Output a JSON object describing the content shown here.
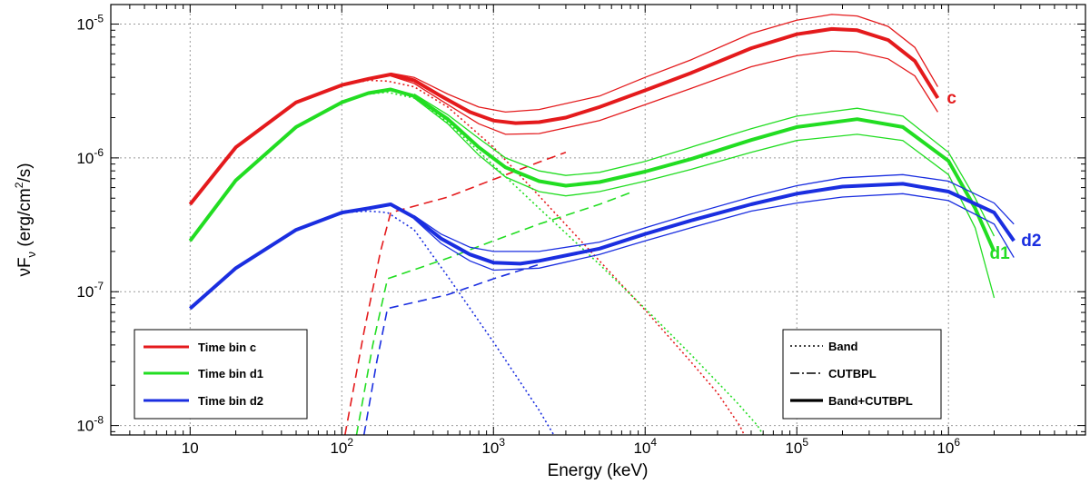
{
  "chart_data": {
    "type": "line",
    "xlabel": "Energy (keV)",
    "ylabel": "νF_ν (erg/cm²/s)",
    "ylabel_parts": {
      "base": "νF",
      "sub": "ν",
      "pre_sup": " (erg/cm",
      "sup": "2",
      "post_sup": "/s)"
    },
    "x_scale": "log",
    "y_scale": "log",
    "xlim": [
      3,
      8000000
    ],
    "ylim": [
      8.5e-09,
      1.4e-05
    ],
    "x_ticks": [
      {
        "value": 10,
        "base": "10",
        "exp": ""
      },
      {
        "value": 100,
        "base": "10",
        "exp": "2"
      },
      {
        "value": 1000,
        "base": "10",
        "exp": "3"
      },
      {
        "value": 10000,
        "base": "10",
        "exp": "4"
      },
      {
        "value": 100000,
        "base": "10",
        "exp": "5"
      },
      {
        "value": 1000000,
        "base": "10",
        "exp": "6"
      }
    ],
    "y_ticks": [
      {
        "value": 1e-05,
        "base": "10",
        "exp": "-5"
      },
      {
        "value": 1e-06,
        "base": "10",
        "exp": "-6"
      },
      {
        "value": 1e-07,
        "base": "10",
        "exp": "-7"
      },
      {
        "value": 1e-08,
        "base": "10",
        "exp": "-8"
      }
    ],
    "grid": true,
    "colors": {
      "c": "#e41a1c",
      "d1": "#22dd22",
      "d2": "#1a2ee0"
    },
    "series": [
      {
        "name": "c",
        "label": "c",
        "color": "#e41a1c",
        "band_total": [
          [
            10,
            4.5e-07
          ],
          [
            20,
            1.2e-06
          ],
          [
            50,
            2.6e-06
          ],
          [
            100,
            3.5e-06
          ],
          [
            150,
            3.9e-06
          ],
          [
            210,
            4.2e-06
          ],
          [
            300,
            3.8e-06
          ],
          [
            450,
            2.9e-06
          ],
          [
            700,
            2.2e-06
          ],
          [
            1000,
            1.9e-06
          ],
          [
            1400,
            1.82e-06
          ],
          [
            2000,
            1.85e-06
          ],
          [
            3000,
            2e-06
          ],
          [
            5000,
            2.4e-06
          ],
          [
            10000,
            3.2e-06
          ],
          [
            20000,
            4.3e-06
          ],
          [
            50000,
            6.6e-06
          ],
          [
            100000,
            8.4e-06
          ],
          [
            170000,
            9.2e-06
          ],
          [
            250000,
            9e-06
          ],
          [
            400000,
            7.6e-06
          ],
          [
            600000,
            5.3e-06
          ],
          [
            850000,
            2.8e-06
          ]
        ],
        "envelope_upper": [
          [
            210,
            4.3e-06
          ],
          [
            300,
            4e-06
          ],
          [
            500,
            3e-06
          ],
          [
            800,
            2.4e-06
          ],
          [
            1200,
            2.2e-06
          ],
          [
            2000,
            2.3e-06
          ],
          [
            5000,
            2.9e-06
          ],
          [
            10000,
            4e-06
          ],
          [
            20000,
            5.4e-06
          ],
          [
            50000,
            8.5e-06
          ],
          [
            100000,
            1.07e-05
          ],
          [
            170000,
            1.18e-05
          ],
          [
            250000,
            1.15e-05
          ],
          [
            400000,
            9.6e-06
          ],
          [
            600000,
            6.7e-06
          ],
          [
            850000,
            3.4e-06
          ]
        ],
        "envelope_lower": [
          [
            210,
            4.1e-06
          ],
          [
            300,
            3.6e-06
          ],
          [
            500,
            2.5e-06
          ],
          [
            800,
            1.8e-06
          ],
          [
            1200,
            1.5e-06
          ],
          [
            2000,
            1.52e-06
          ],
          [
            5000,
            1.9e-06
          ],
          [
            10000,
            2.5e-06
          ],
          [
            20000,
            3.3e-06
          ],
          [
            50000,
            4.8e-06
          ],
          [
            100000,
            5.8e-06
          ],
          [
            170000,
            6.3e-06
          ],
          [
            250000,
            6.2e-06
          ],
          [
            400000,
            5.5e-06
          ],
          [
            600000,
            4.1e-06
          ],
          [
            850000,
            2.2e-06
          ]
        ],
        "band": [
          [
            10,
            4.5e-07
          ],
          [
            20,
            1.2e-06
          ],
          [
            50,
            2.6e-06
          ],
          [
            100,
            3.5e-06
          ],
          [
            150,
            3.8e-06
          ],
          [
            200,
            3.75e-06
          ],
          [
            300,
            3.4e-06
          ],
          [
            500,
            2.4e-06
          ],
          [
            1000,
            1.2e-06
          ],
          [
            2000,
            5.2e-07
          ],
          [
            5000,
            1.7e-07
          ],
          [
            10000,
            7.3e-08
          ],
          [
            20000,
            3e-08
          ],
          [
            30000,
            1.75e-08
          ],
          [
            42000,
            1e-08
          ],
          [
            45000,
            8.5e-09
          ]
        ],
        "cutbpl": [
          [
            105,
            8.5e-09
          ],
          [
            140,
            5e-08
          ],
          [
            180,
            2e-07
          ],
          [
            210,
            3.9e-07
          ],
          [
            500,
            5.1e-07
          ],
          [
            1000,
            6.9e-07
          ],
          [
            2000,
            9.3e-07
          ],
          [
            3000,
            1.1e-06
          ]
        ]
      },
      {
        "name": "d1",
        "label": "d1",
        "color": "#22dd22",
        "band_total": [
          [
            10,
            2.4e-07
          ],
          [
            20,
            6.8e-07
          ],
          [
            50,
            1.7e-06
          ],
          [
            100,
            2.6e-06
          ],
          [
            150,
            3.05e-06
          ],
          [
            210,
            3.25e-06
          ],
          [
            300,
            2.9e-06
          ],
          [
            500,
            1.95e-06
          ],
          [
            800,
            1.2e-06
          ],
          [
            1200,
            8.5e-07
          ],
          [
            2000,
            6.7e-07
          ],
          [
            3000,
            6.2e-07
          ],
          [
            5000,
            6.6e-07
          ],
          [
            10000,
            7.9e-07
          ],
          [
            20000,
            9.8e-07
          ],
          [
            50000,
            1.36e-06
          ],
          [
            100000,
            1.7e-06
          ],
          [
            250000,
            1.95e-06
          ],
          [
            500000,
            1.7e-06
          ],
          [
            1000000,
            9.5e-07
          ],
          [
            1500000,
            4.2e-07
          ],
          [
            2000000,
            2e-07
          ]
        ],
        "envelope_upper": [
          [
            300,
            3e-06
          ],
          [
            500,
            2.1e-06
          ],
          [
            800,
            1.4e-06
          ],
          [
            1200,
            1e-06
          ],
          [
            2000,
            8e-07
          ],
          [
            3000,
            7.4e-07
          ],
          [
            5000,
            7.8e-07
          ],
          [
            10000,
            9.4e-07
          ],
          [
            20000,
            1.2e-06
          ],
          [
            50000,
            1.65e-06
          ],
          [
            100000,
            2.05e-06
          ],
          [
            250000,
            2.35e-06
          ],
          [
            500000,
            2.05e-06
          ],
          [
            1000000,
            1.1e-06
          ],
          [
            1500000,
            5e-07
          ],
          [
            2000000,
            2.6e-07
          ]
        ],
        "envelope_lower": [
          [
            300,
            2.8e-06
          ],
          [
            500,
            1.8e-06
          ],
          [
            800,
            1.05e-06
          ],
          [
            1200,
            7.2e-07
          ],
          [
            2000,
            5.6e-07
          ],
          [
            3000,
            5.2e-07
          ],
          [
            5000,
            5.6e-07
          ],
          [
            10000,
            6.7e-07
          ],
          [
            20000,
            8.2e-07
          ],
          [
            50000,
            1.1e-06
          ],
          [
            100000,
            1.35e-06
          ],
          [
            250000,
            1.5e-06
          ],
          [
            500000,
            1.35e-06
          ],
          [
            1000000,
            7.5e-07
          ],
          [
            1500000,
            3e-07
          ],
          [
            2000000,
            9e-08
          ]
        ],
        "band": [
          [
            10,
            2.4e-07
          ],
          [
            20,
            6.8e-07
          ],
          [
            50,
            1.7e-06
          ],
          [
            100,
            2.6e-06
          ],
          [
            150,
            3e-06
          ],
          [
            200,
            3.1e-06
          ],
          [
            300,
            2.8e-06
          ],
          [
            500,
            1.85e-06
          ],
          [
            1000,
            8.8e-07
          ],
          [
            2000,
            4.2e-07
          ],
          [
            5000,
            1.6e-07
          ],
          [
            10000,
            7.5e-08
          ],
          [
            20000,
            3.4e-08
          ],
          [
            40000,
            1.5e-08
          ],
          [
            55000,
            1e-08
          ],
          [
            60000,
            8.5e-09
          ]
        ],
        "cutbpl": [
          [
            125,
            8.5e-09
          ],
          [
            160,
            4e-08
          ],
          [
            200,
            1.25e-07
          ],
          [
            500,
            1.78e-07
          ],
          [
            1000,
            2.4e-07
          ],
          [
            2000,
            3.2e-07
          ],
          [
            5000,
            4.5e-07
          ],
          [
            8000,
            5.5e-07
          ]
        ]
      },
      {
        "name": "d2",
        "label": "d2",
        "color": "#1a2ee0",
        "band_total": [
          [
            10,
            7.5e-08
          ],
          [
            20,
            1.5e-07
          ],
          [
            50,
            2.9e-07
          ],
          [
            100,
            3.9e-07
          ],
          [
            150,
            4.2e-07
          ],
          [
            210,
            4.5e-07
          ],
          [
            300,
            3.6e-07
          ],
          [
            450,
            2.5e-07
          ],
          [
            700,
            1.9e-07
          ],
          [
            1000,
            1.65e-07
          ],
          [
            1500,
            1.62e-07
          ],
          [
            2000,
            1.7e-07
          ],
          [
            5000,
            2.1e-07
          ],
          [
            10000,
            2.7e-07
          ],
          [
            20000,
            3.4e-07
          ],
          [
            50000,
            4.5e-07
          ],
          [
            100000,
            5.4e-07
          ],
          [
            200000,
            6.1e-07
          ],
          [
            500000,
            6.4e-07
          ],
          [
            1000000,
            5.6e-07
          ],
          [
            2000000,
            3.9e-07
          ],
          [
            2700000,
            2.4e-07
          ]
        ],
        "envelope_upper": [
          [
            300,
            3.7e-07
          ],
          [
            450,
            2.7e-07
          ],
          [
            700,
            2.15e-07
          ],
          [
            1000,
            2e-07
          ],
          [
            2000,
            2e-07
          ],
          [
            5000,
            2.35e-07
          ],
          [
            10000,
            3e-07
          ],
          [
            20000,
            3.8e-07
          ],
          [
            50000,
            5.1e-07
          ],
          [
            100000,
            6.2e-07
          ],
          [
            200000,
            7.1e-07
          ],
          [
            500000,
            7.5e-07
          ],
          [
            1000000,
            6.7e-07
          ],
          [
            2000000,
            4.6e-07
          ],
          [
            2700000,
            3.2e-07
          ]
        ],
        "envelope_lower": [
          [
            300,
            3.5e-07
          ],
          [
            450,
            2.3e-07
          ],
          [
            700,
            1.7e-07
          ],
          [
            1000,
            1.45e-07
          ],
          [
            2000,
            1.5e-07
          ],
          [
            5000,
            1.9e-07
          ],
          [
            10000,
            2.4e-07
          ],
          [
            20000,
            3e-07
          ],
          [
            50000,
            4e-07
          ],
          [
            100000,
            4.6e-07
          ],
          [
            200000,
            5.1e-07
          ],
          [
            500000,
            5.4e-07
          ],
          [
            1000000,
            4.8e-07
          ],
          [
            2000000,
            3.2e-07
          ],
          [
            2700000,
            1.8e-07
          ]
        ],
        "band": [
          [
            10,
            7.5e-08
          ],
          [
            20,
            1.5e-07
          ],
          [
            50,
            2.9e-07
          ],
          [
            100,
            3.9e-07
          ],
          [
            150,
            4e-07
          ],
          [
            200,
            3.9e-07
          ],
          [
            300,
            2.9e-07
          ],
          [
            500,
            1.3e-07
          ],
          [
            1000,
            4.2e-08
          ],
          [
            2000,
            1.3e-08
          ],
          [
            2500,
            8.5e-09
          ]
        ],
        "cutbpl": [
          [
            140,
            8.5e-09
          ],
          [
            170,
            3e-08
          ],
          [
            200,
            7.5e-08
          ],
          [
            500,
            9.5e-08
          ],
          [
            1000,
            1.25e-07
          ],
          [
            2000,
            1.6e-07
          ]
        ]
      }
    ],
    "legend_left": {
      "position": "bottom-left",
      "entries": [
        {
          "label": "Time bin c",
          "color": "#e41a1c"
        },
        {
          "label": "Time bin d1",
          "color": "#22dd22"
        },
        {
          "label": "Time bin d2",
          "color": "#1a2ee0"
        }
      ]
    },
    "legend_right": {
      "position": "bottom-right",
      "entries": [
        {
          "label": "Band",
          "style": "dotted"
        },
        {
          "label": "CUTBPL",
          "style": "dashdot"
        },
        {
          "label": "Band+CUTBPL",
          "style": "solid"
        }
      ]
    }
  }
}
